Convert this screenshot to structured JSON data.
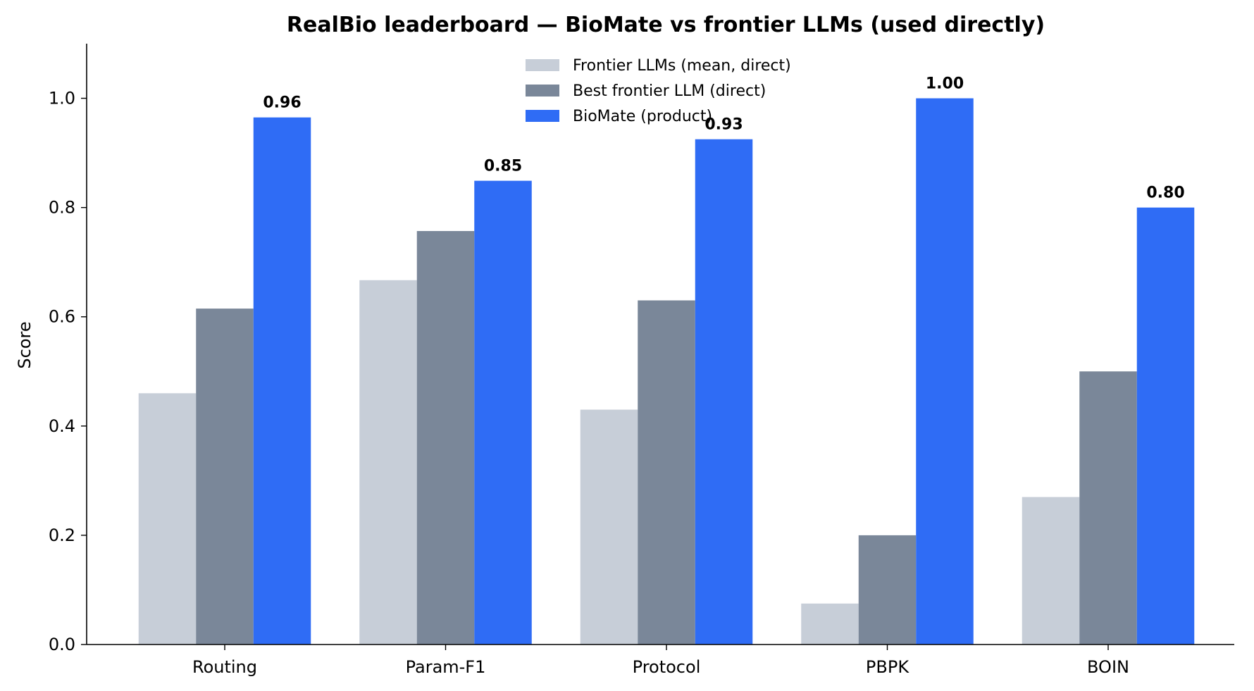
{
  "chart_data": {
    "type": "bar",
    "title": "RealBio leaderboard — BioMate vs frontier LLMs (used directly)",
    "xlabel": "",
    "ylabel": "Score",
    "ylim": [
      0,
      1.1
    ],
    "yticks": [
      "0.0",
      "0.2",
      "0.4",
      "0.6",
      "0.8",
      "1.0"
    ],
    "grid": false,
    "legend_position": "top-center",
    "categories": [
      "Routing",
      "Param-F1",
      "Protocol",
      "PBPK",
      "BOIN"
    ],
    "series": [
      {
        "name": "Frontier LLMs (mean, direct)",
        "color": "#c7ced8",
        "values": [
          0.46,
          0.667,
          0.43,
          0.075,
          0.27
        ]
      },
      {
        "name": "Best frontier LLM (direct)",
        "color": "#7a8799",
        "values": [
          0.615,
          0.757,
          0.63,
          0.2,
          0.5
        ]
      },
      {
        "name": "BioMate (product)",
        "color": "#2f6cf5",
        "values": [
          0.965,
          0.849,
          0.925,
          1.0,
          0.8
        ],
        "labels": [
          "0.96",
          "0.85",
          "0.93",
          "1.00",
          "0.80"
        ]
      }
    ]
  }
}
